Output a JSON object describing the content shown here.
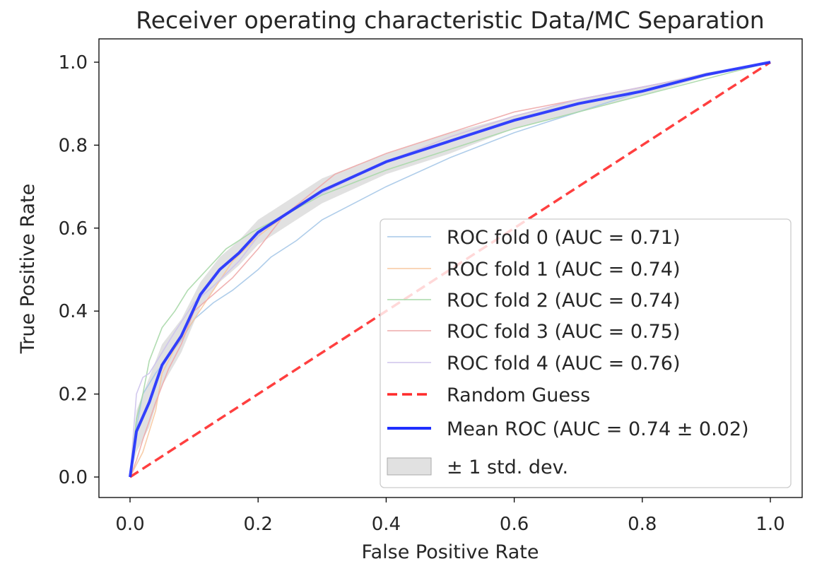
{
  "chart_data": {
    "type": "line",
    "title": "Receiver operating characteristic Data/MC Separation",
    "xlabel": "False Positive Rate",
    "ylabel": "True Positive Rate",
    "xlim": [
      -0.05,
      1.05
    ],
    "ylim": [
      -0.05,
      1.05
    ],
    "xticks": [
      "0.0",
      "0.2",
      "0.4",
      "0.6",
      "0.8",
      "1.0"
    ],
    "yticks": [
      "0.0",
      "0.2",
      "0.4",
      "0.6",
      "0.8",
      "1.0"
    ],
    "grid": false,
    "legend_position": "lower right",
    "series": [
      {
        "name": "ROC fold 0 (AUC = 0.71)",
        "color": "#a6c8e8",
        "style": "thin",
        "points": [
          [
            0,
            0
          ],
          [
            0.01,
            0.12
          ],
          [
            0.02,
            0.2
          ],
          [
            0.04,
            0.25
          ],
          [
            0.06,
            0.29
          ],
          [
            0.08,
            0.33
          ],
          [
            0.1,
            0.38
          ],
          [
            0.13,
            0.42
          ],
          [
            0.16,
            0.45
          ],
          [
            0.2,
            0.5
          ],
          [
            0.22,
            0.53
          ],
          [
            0.26,
            0.57
          ],
          [
            0.3,
            0.62
          ],
          [
            0.4,
            0.7
          ],
          [
            0.5,
            0.77
          ],
          [
            0.6,
            0.83
          ],
          [
            0.7,
            0.88
          ],
          [
            0.8,
            0.93
          ],
          [
            0.9,
            0.97
          ],
          [
            1,
            1
          ]
        ]
      },
      {
        "name": "ROC fold 1 (AUC = 0.74)",
        "color": "#f7c8a0",
        "style": "thin",
        "points": [
          [
            0,
            0
          ],
          [
            0.01,
            0.03
          ],
          [
            0.02,
            0.06
          ],
          [
            0.04,
            0.16
          ],
          [
            0.05,
            0.25
          ],
          [
            0.07,
            0.31
          ],
          [
            0.1,
            0.38
          ],
          [
            0.13,
            0.45
          ],
          [
            0.16,
            0.52
          ],
          [
            0.2,
            0.58
          ],
          [
            0.25,
            0.64
          ],
          [
            0.3,
            0.69
          ],
          [
            0.4,
            0.76
          ],
          [
            0.5,
            0.82
          ],
          [
            0.6,
            0.87
          ],
          [
            0.7,
            0.91
          ],
          [
            0.8,
            0.94
          ],
          [
            0.9,
            0.97
          ],
          [
            1,
            1
          ]
        ]
      },
      {
        "name": "ROC fold 2 (AUC = 0.74)",
        "color": "#a8d8a8",
        "style": "thin",
        "points": [
          [
            0,
            0
          ],
          [
            0.01,
            0.14
          ],
          [
            0.02,
            0.2
          ],
          [
            0.03,
            0.28
          ],
          [
            0.05,
            0.36
          ],
          [
            0.07,
            0.4
          ],
          [
            0.09,
            0.45
          ],
          [
            0.12,
            0.5
          ],
          [
            0.15,
            0.55
          ],
          [
            0.19,
            0.59
          ],
          [
            0.24,
            0.63
          ],
          [
            0.3,
            0.68
          ],
          [
            0.4,
            0.74
          ],
          [
            0.5,
            0.79
          ],
          [
            0.6,
            0.84
          ],
          [
            0.7,
            0.88
          ],
          [
            0.8,
            0.92
          ],
          [
            0.9,
            0.96
          ],
          [
            1,
            1
          ]
        ]
      },
      {
        "name": "ROC fold 3 (AUC = 0.75)",
        "color": "#eeaaaa",
        "style": "thin",
        "points": [
          [
            0,
            0
          ],
          [
            0.01,
            0.04
          ],
          [
            0.02,
            0.09
          ],
          [
            0.04,
            0.18
          ],
          [
            0.06,
            0.26
          ],
          [
            0.08,
            0.32
          ],
          [
            0.1,
            0.4
          ],
          [
            0.13,
            0.44
          ],
          [
            0.16,
            0.48
          ],
          [
            0.2,
            0.55
          ],
          [
            0.24,
            0.63
          ],
          [
            0.32,
            0.73
          ],
          [
            0.4,
            0.78
          ],
          [
            0.5,
            0.83
          ],
          [
            0.6,
            0.88
          ],
          [
            0.7,
            0.91
          ],
          [
            0.8,
            0.94
          ],
          [
            0.9,
            0.97
          ],
          [
            1,
            1
          ]
        ]
      },
      {
        "name": "ROC fold 4 (AUC = 0.76)",
        "color": "#cdc3ec",
        "style": "thin",
        "points": [
          [
            0,
            0
          ],
          [
            0.01,
            0.2
          ],
          [
            0.02,
            0.24
          ],
          [
            0.03,
            0.25
          ],
          [
            0.05,
            0.3
          ],
          [
            0.07,
            0.35
          ],
          [
            0.1,
            0.42
          ],
          [
            0.13,
            0.46
          ],
          [
            0.17,
            0.52
          ],
          [
            0.21,
            0.6
          ],
          [
            0.26,
            0.65
          ],
          [
            0.32,
            0.7
          ],
          [
            0.4,
            0.76
          ],
          [
            0.5,
            0.82
          ],
          [
            0.6,
            0.87
          ],
          [
            0.7,
            0.91
          ],
          [
            0.8,
            0.94
          ],
          [
            0.9,
            0.97
          ],
          [
            1,
            1
          ]
        ]
      },
      {
        "name": "Random Guess",
        "color": "#ff2a2a",
        "style": "dashed",
        "points": [
          [
            0,
            0
          ],
          [
            1,
            1
          ]
        ]
      },
      {
        "name": "Mean ROC (AUC = 0.74 ± 0.02)",
        "color": "#1f2fff",
        "style": "thick",
        "points": [
          [
            0,
            0
          ],
          [
            0.01,
            0.11
          ],
          [
            0.03,
            0.18
          ],
          [
            0.05,
            0.27
          ],
          [
            0.08,
            0.34
          ],
          [
            0.11,
            0.44
          ],
          [
            0.14,
            0.5
          ],
          [
            0.17,
            0.54
          ],
          [
            0.2,
            0.59
          ],
          [
            0.25,
            0.64
          ],
          [
            0.3,
            0.69
          ],
          [
            0.4,
            0.76
          ],
          [
            0.5,
            0.81
          ],
          [
            0.6,
            0.86
          ],
          [
            0.7,
            0.9
          ],
          [
            0.8,
            0.93
          ],
          [
            0.9,
            0.97
          ],
          [
            1,
            1
          ]
        ]
      }
    ],
    "std_band": {
      "name": "± 1 std. dev.",
      "color": "#bdbdbd",
      "x": [
        0,
        0.01,
        0.03,
        0.05,
        0.08,
        0.11,
        0.14,
        0.17,
        0.2,
        0.25,
        0.3,
        0.4,
        0.5,
        0.6,
        0.7,
        0.8,
        0.9,
        1
      ],
      "upper": [
        0,
        0.16,
        0.24,
        0.32,
        0.38,
        0.47,
        0.53,
        0.57,
        0.62,
        0.67,
        0.72,
        0.78,
        0.83,
        0.87,
        0.91,
        0.94,
        0.975,
        1
      ],
      "lower": [
        0,
        0.06,
        0.12,
        0.22,
        0.3,
        0.41,
        0.47,
        0.51,
        0.56,
        0.61,
        0.66,
        0.73,
        0.78,
        0.84,
        0.88,
        0.92,
        0.965,
        1
      ]
    }
  }
}
